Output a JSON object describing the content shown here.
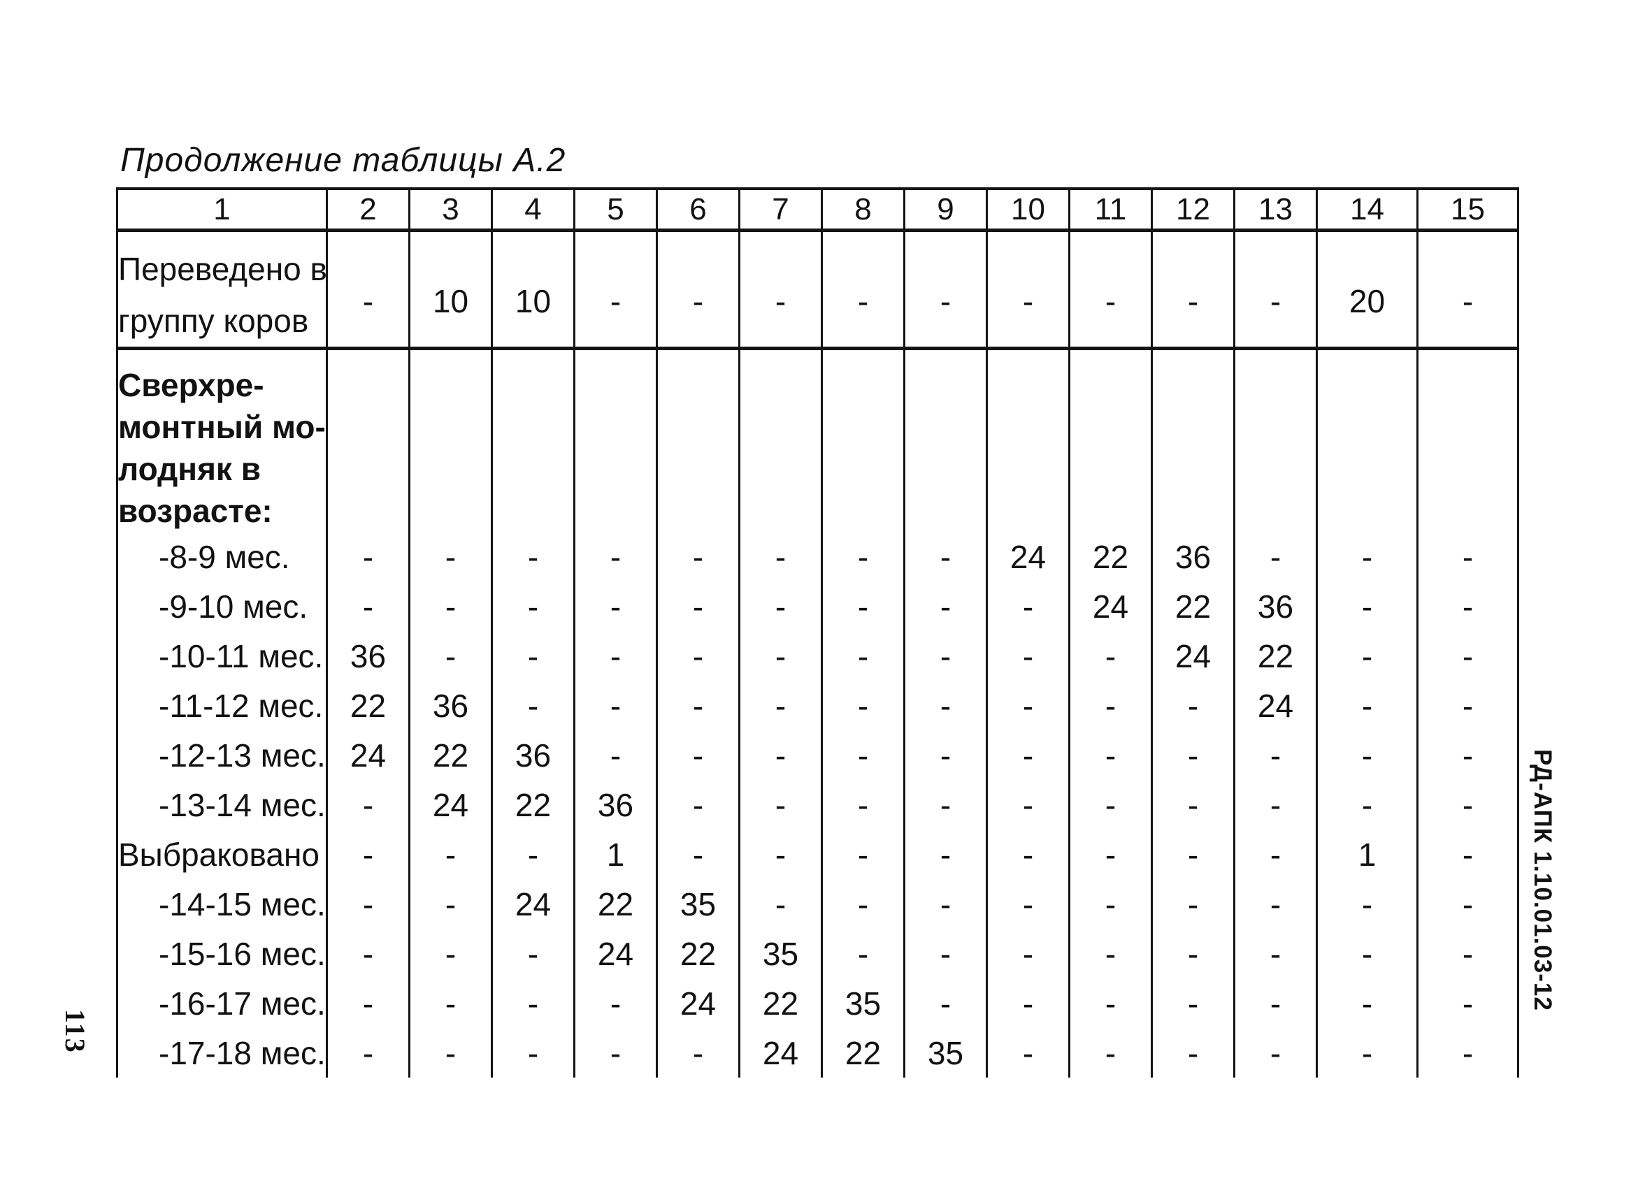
{
  "page": {
    "title": "Продолжение таблицы А.2",
    "side_label": "РД-АПК 1.10.01.03-12",
    "page_number": "113"
  },
  "table": {
    "columns": [
      "1",
      "2",
      "3",
      "4",
      "5",
      "6",
      "7",
      "8",
      "9",
      "10",
      "11",
      "12",
      "13",
      "14",
      "15"
    ],
    "rows": [
      {
        "label_lines": [
          "Переведено в",
          "группу коров"
        ],
        "bold": false,
        "indent": false,
        "kind": "perevedeno",
        "values": [
          "-",
          "10",
          "10",
          "-",
          "-",
          "-",
          "-",
          "-",
          "-",
          "-",
          "-",
          "-",
          "20",
          "-"
        ]
      },
      {
        "label_lines": [
          "Сверхре-",
          "монтный мо-",
          "лодняк в",
          "возрасте:"
        ],
        "bold": true,
        "indent": false,
        "kind": "block",
        "values": [
          "",
          "",
          "",
          "",
          "",
          "",
          "",
          "",
          "",
          "",
          "",
          "",
          "",
          ""
        ]
      },
      {
        "label_lines": [
          "-8-9 мес."
        ],
        "bold": false,
        "indent": true,
        "kind": "data",
        "values": [
          "-",
          "-",
          "-",
          "-",
          "-",
          "-",
          "-",
          "-",
          "24",
          "22",
          "36",
          "-",
          "-",
          "-"
        ]
      },
      {
        "label_lines": [
          "-9-10 мес."
        ],
        "bold": false,
        "indent": true,
        "kind": "data",
        "values": [
          "-",
          "-",
          "-",
          "-",
          "-",
          "-",
          "-",
          "-",
          "-",
          "24",
          "22",
          "36",
          "-",
          "-"
        ]
      },
      {
        "label_lines": [
          "-10-11 мес."
        ],
        "bold": false,
        "indent": true,
        "kind": "data",
        "values": [
          "36",
          "-",
          "-",
          "-",
          "-",
          "-",
          "-",
          "-",
          "-",
          "-",
          "24",
          "22",
          "-",
          "-"
        ]
      },
      {
        "label_lines": [
          "-11-12 мес."
        ],
        "bold": false,
        "indent": true,
        "kind": "data",
        "values": [
          "22",
          "36",
          "-",
          "-",
          "-",
          "-",
          "-",
          "-",
          "-",
          "-",
          "-",
          "24",
          "-",
          "-"
        ]
      },
      {
        "label_lines": [
          "-12-13 мес."
        ],
        "bold": false,
        "indent": true,
        "kind": "data",
        "values": [
          "24",
          "22",
          "36",
          "-",
          "-",
          "-",
          "-",
          "-",
          "-",
          "-",
          "-",
          "-",
          "-",
          "-"
        ]
      },
      {
        "label_lines": [
          "-13-14 мес."
        ],
        "bold": false,
        "indent": true,
        "kind": "data",
        "values": [
          "-",
          "24",
          "22",
          "36",
          "-",
          "-",
          "-",
          "-",
          "-",
          "-",
          "-",
          "-",
          "-",
          "-"
        ]
      },
      {
        "label_lines": [
          "Выбраковано"
        ],
        "bold": false,
        "indent": false,
        "kind": "data",
        "values": [
          "-",
          "-",
          "-",
          "1",
          "-",
          "-",
          "-",
          "-",
          "-",
          "-",
          "-",
          "-",
          "1",
          "-"
        ]
      },
      {
        "label_lines": [
          "-14-15 мес."
        ],
        "bold": false,
        "indent": true,
        "kind": "data",
        "values": [
          "-",
          "-",
          "24",
          "22",
          "35",
          "-",
          "-",
          "-",
          "-",
          "-",
          "-",
          "-",
          "-",
          "-"
        ]
      },
      {
        "label_lines": [
          "-15-16 мес."
        ],
        "bold": false,
        "indent": true,
        "kind": "data",
        "values": [
          "-",
          "-",
          "-",
          "24",
          "22",
          "35",
          "-",
          "-",
          "-",
          "-",
          "-",
          "-",
          "-",
          "-"
        ]
      },
      {
        "label_lines": [
          "-16-17 мес."
        ],
        "bold": false,
        "indent": true,
        "kind": "data",
        "values": [
          "-",
          "-",
          "-",
          "-",
          "24",
          "22",
          "35",
          "-",
          "-",
          "-",
          "-",
          "-",
          "-",
          "-"
        ]
      },
      {
        "label_lines": [
          "-17-18 мес."
        ],
        "bold": false,
        "indent": true,
        "kind": "data",
        "values": [
          "-",
          "-",
          "-",
          "-",
          "-",
          "24",
          "22",
          "35",
          "-",
          "-",
          "-",
          "-",
          "-",
          "-"
        ]
      }
    ]
  }
}
